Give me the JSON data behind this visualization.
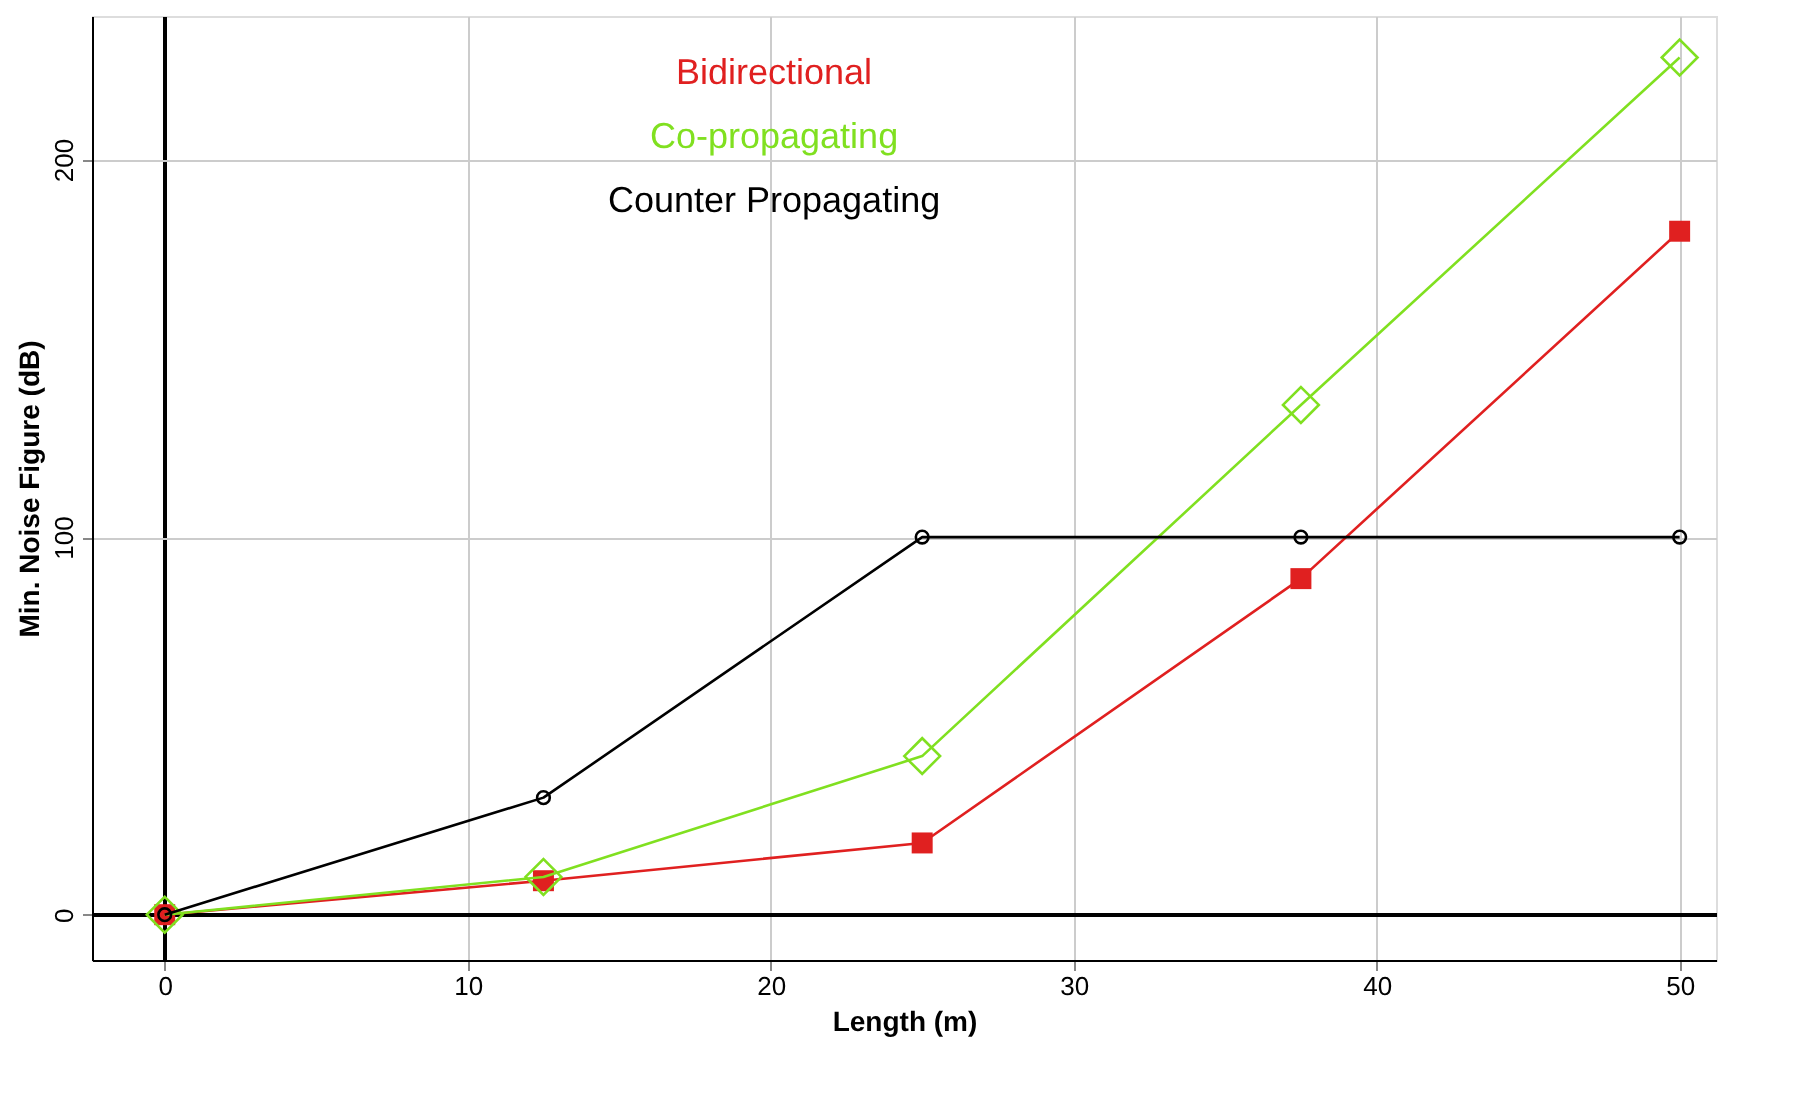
{
  "chart_data": {
    "type": "line",
    "xlabel": "Length (m)",
    "ylabel": "Min. Noise Figure (dB)",
    "x": [
      0,
      12.5,
      25,
      37.5,
      50
    ],
    "series": [
      {
        "name": "Bidirectional",
        "color": "#e02020",
        "marker": "square",
        "values": [
          0,
          9,
          19,
          89,
          181
        ]
      },
      {
        "name": "Co-propagating",
        "color": "#80e020",
        "marker": "diamond",
        "values": [
          0,
          10,
          42,
          135,
          227
        ]
      },
      {
        "name": "Counter Propagating",
        "color": "#000000",
        "marker": "circle",
        "values": [
          0,
          31,
          100,
          100,
          100
        ]
      }
    ],
    "xlim": [
      -2.4,
      51.2
    ],
    "ylim": [
      -12,
      238
    ],
    "xticks": [
      0,
      10,
      20,
      30,
      40,
      50
    ],
    "yticks": [
      0,
      100,
      200
    ],
    "grid": true,
    "legend": "top"
  }
}
